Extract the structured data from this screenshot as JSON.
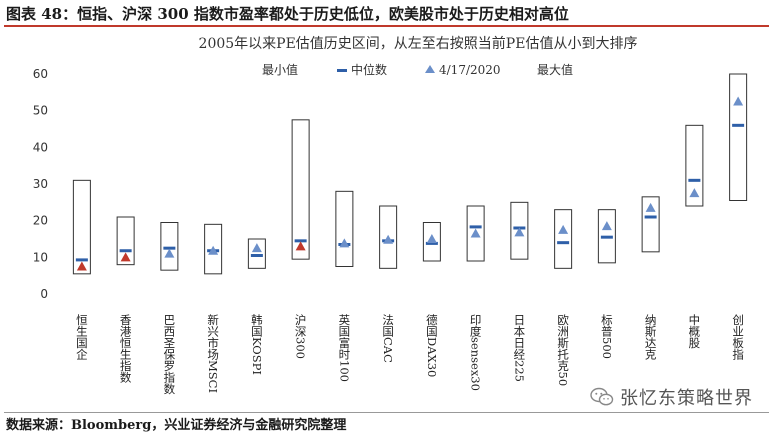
{
  "header": {
    "title": "图表 48：恒指、沪深 300 指数市盈率都处于历史低位，欧美股市处于历史相对高位"
  },
  "source": "数据来源：Bloomberg，兴业证券经济与金融研究院整理",
  "watermark": {
    "text": "张忆东策略世界",
    "icon": "wechat-icon"
  },
  "colors": {
    "median": "#2e5fa8",
    "current": "#6b8fc9",
    "current_highlight": "#c0392b",
    "box": "#333333"
  },
  "chart_data": {
    "type": "box-range",
    "title": "2005年以来PE估值历史区间，从左至右按照当前PE估值从小到大排序",
    "legend": [
      "最小值",
      "中位数",
      "4/17/2020",
      "最大值"
    ],
    "ylim": [
      0,
      60
    ],
    "yticks": [
      0,
      10,
      20,
      30,
      40,
      50,
      60
    ],
    "categories": [
      "恒生国企",
      "香港恒生指数",
      "巴西圣保罗指数",
      "新兴市场MSCI",
      "韩国KOSPI",
      "沪深300",
      "英国富时100",
      "法国CAC",
      "德国DAX30",
      "印度sensex30",
      "日本日经225",
      "欧洲斯托克50",
      "标普500",
      "纳斯达克",
      "中概股",
      "创业板指"
    ],
    "series": [
      {
        "name": "最小值",
        "values": [
          5.5,
          8.0,
          6.5,
          5.5,
          7.0,
          9.5,
          7.5,
          7.0,
          9.0,
          9.0,
          9.5,
          7.0,
          8.5,
          11.5,
          24.0,
          25.5
        ]
      },
      {
        "name": "中位数",
        "values": [
          9.3,
          11.8,
          12.5,
          11.8,
          10.5,
          14.5,
          13.5,
          14.5,
          13.8,
          18.3,
          18.0,
          14.0,
          15.5,
          21.0,
          31.0,
          46.0
        ]
      },
      {
        "name": "4/17/2020",
        "values": [
          7.5,
          10.0,
          11.0,
          11.8,
          12.5,
          13.0,
          13.8,
          14.8,
          15.0,
          16.5,
          16.8,
          17.5,
          18.5,
          23.5,
          27.5,
          52.5
        ]
      },
      {
        "name": "最大值",
        "values": [
          31.0,
          21.0,
          19.5,
          19.0,
          15.0,
          47.5,
          28.0,
          24.0,
          19.5,
          24.0,
          25.0,
          23.0,
          23.0,
          26.5,
          46.0,
          60.0
        ]
      }
    ],
    "highlight": [
      "恒生国企",
      "香港恒生指数",
      "沪深300"
    ]
  }
}
